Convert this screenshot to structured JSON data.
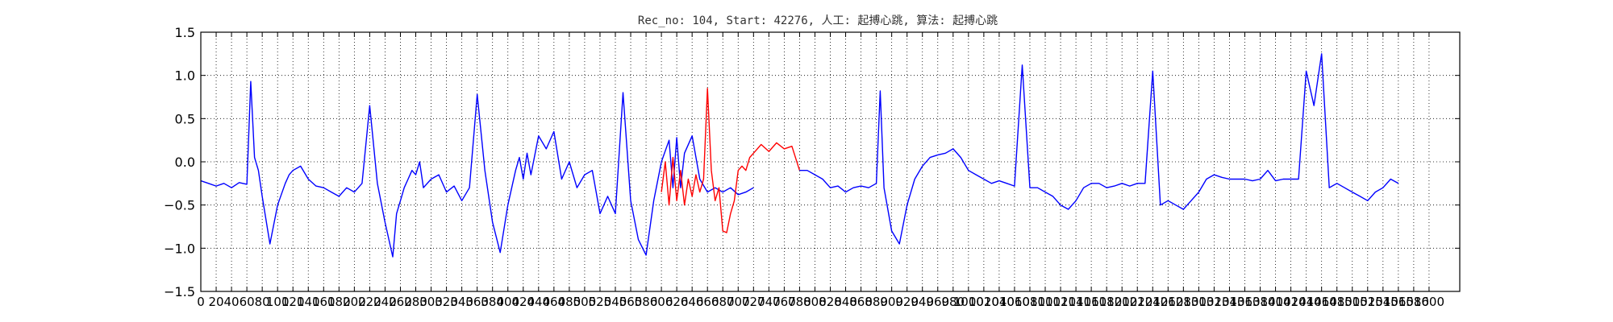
{
  "chart_data": {
    "type": "line",
    "title": "Rec_no: 104, Start: 42276, 人工: 起搏心跳, 算法: 起搏心跳",
    "xlabel": "",
    "ylabel": "",
    "xlim": [
      0,
      1640
    ],
    "ylim": [
      -1.5,
      1.5
    ],
    "grid": true,
    "yticks": [
      1.5,
      1.0,
      0.5,
      0.0,
      -0.5,
      -1.0,
      -1.5
    ],
    "ytick_labels": [
      "1.5",
      "1.0",
      "0.5",
      "0.0",
      "−0.5",
      "−1.0",
      "−1.5"
    ],
    "xticks": [
      0,
      20,
      40,
      60,
      80,
      100,
      120,
      140,
      160,
      180,
      200,
      220,
      240,
      260,
      280,
      300,
      320,
      340,
      360,
      380,
      400,
      420,
      440,
      460,
      480,
      500,
      520,
      540,
      560,
      580,
      600,
      620,
      640,
      660,
      680,
      700,
      720,
      740,
      760,
      780,
      800,
      820,
      840,
      860,
      880,
      900,
      920,
      940,
      960,
      980,
      1000,
      1020,
      1040,
      1060,
      1080,
      1100,
      1120,
      1140,
      1160,
      1180,
      1200,
      1220,
      1240,
      1260,
      1280,
      1300,
      1320,
      1340,
      1360,
      1380,
      1400,
      1420,
      1440,
      1460,
      1480,
      1500,
      1520,
      1540,
      1560,
      1580,
      1600
    ],
    "series": [
      {
        "color": "#0000ff",
        "x": [
          0,
          10,
          20,
          30,
          40,
          50,
          60,
          65,
          70,
          75,
          80,
          90,
          100,
          110,
          115,
          120,
          130,
          140,
          150,
          160,
          170,
          180,
          190,
          200,
          210,
          220,
          230,
          240,
          250,
          255,
          260,
          265,
          270,
          275,
          280,
          285,
          290,
          300,
          310,
          320,
          330,
          340,
          350,
          360,
          370,
          380,
          390,
          400,
          410,
          415,
          420,
          425,
          430,
          440,
          450,
          460,
          470,
          480,
          490,
          500,
          510,
          520,
          530,
          540,
          550,
          560,
          570,
          580,
          590,
          600,
          610,
          615,
          620,
          625,
          630,
          640,
          650,
          660,
          670,
          680,
          690,
          700,
          710,
          720
        ],
        "y": [
          -0.22,
          -0.25,
          -0.28,
          -0.25,
          -0.3,
          -0.24,
          -0.26,
          0.93,
          0.05,
          -0.1,
          -0.4,
          -0.95,
          -0.5,
          -0.25,
          -0.15,
          -0.1,
          -0.05,
          -0.2,
          -0.28,
          -0.3,
          -0.35,
          -0.4,
          -0.3,
          -0.35,
          -0.25,
          0.65,
          -0.25,
          -0.7,
          -1.1,
          -0.6,
          -0.45,
          -0.3,
          -0.2,
          -0.1,
          -0.15,
          0.0,
          -0.3,
          -0.2,
          -0.15,
          -0.35,
          -0.28,
          -0.45,
          -0.3,
          0.78,
          -0.1,
          -0.7,
          -1.05,
          -0.5,
          -0.1,
          0.05,
          -0.2,
          0.1,
          -0.15,
          0.3,
          0.15,
          0.35,
          -0.2,
          0.0,
          -0.3,
          -0.15,
          -0.1,
          -0.6,
          -0.4,
          -0.6,
          0.8,
          -0.45,
          -0.9,
          -1.08,
          -0.45,
          0.0,
          0.25,
          -0.3,
          0.28,
          -0.3,
          0.1,
          0.3,
          -0.2,
          -0.35,
          -0.3,
          -0.35,
          -0.3,
          -0.38,
          -0.35,
          -0.3
        ]
      },
      {
        "color": "#ff0000",
        "x": [
          600,
          605,
          610,
          615,
          620,
          625,
          630,
          635,
          640,
          645,
          650,
          655,
          660,
          665,
          670,
          675,
          680,
          685,
          690,
          695,
          700,
          705,
          710,
          715,
          720,
          730,
          740,
          750,
          760,
          770,
          780
        ],
        "y": [
          -0.35,
          0.0,
          -0.5,
          0.05,
          -0.45,
          -0.1,
          -0.5,
          -0.2,
          -0.4,
          -0.15,
          -0.35,
          -0.2,
          0.85,
          -0.1,
          -0.45,
          -0.3,
          -0.8,
          -0.82,
          -0.6,
          -0.45,
          -0.1,
          -0.05,
          -0.1,
          0.05,
          0.1,
          0.2,
          0.12,
          0.22,
          0.15,
          0.18,
          -0.1
        ]
      },
      {
        "color": "#0000ff",
        "x": [
          780,
          790,
          800,
          810,
          820,
          830,
          840,
          850,
          860,
          870,
          880,
          885,
          890,
          900,
          910,
          920,
          930,
          940,
          950,
          960,
          970,
          980,
          990,
          1000,
          1010,
          1020,
          1030,
          1040,
          1050,
          1060,
          1070,
          1080,
          1090,
          1100,
          1110,
          1120,
          1130,
          1140,
          1150,
          1160,
          1170,
          1180,
          1190,
          1200,
          1210,
          1220,
          1230,
          1240,
          1250,
          1260,
          1270,
          1280,
          1290,
          1300,
          1310,
          1320,
          1330,
          1340,
          1350,
          1360,
          1370,
          1380,
          1390,
          1400,
          1410,
          1420,
          1430,
          1440,
          1450,
          1460,
          1470,
          1480,
          1490,
          1500,
          1510,
          1520,
          1530,
          1540,
          1550,
          1560
        ],
        "y": [
          -0.1,
          -0.1,
          -0.15,
          -0.2,
          -0.3,
          -0.28,
          -0.35,
          -0.3,
          -0.28,
          -0.3,
          -0.25,
          0.82,
          -0.3,
          -0.8,
          -0.95,
          -0.5,
          -0.2,
          -0.05,
          0.05,
          0.08,
          0.1,
          0.15,
          0.05,
          -0.1,
          -0.15,
          -0.2,
          -0.25,
          -0.22,
          -0.25,
          -0.28,
          1.12,
          -0.3,
          -0.3,
          -0.35,
          -0.4,
          -0.5,
          -0.55,
          -0.45,
          -0.3,
          -0.25,
          -0.25,
          -0.3,
          -0.28,
          -0.25,
          -0.28,
          -0.25,
          -0.25,
          1.05,
          -0.5,
          -0.45,
          -0.5,
          -0.55,
          -0.45,
          -0.35,
          -0.2,
          -0.15,
          -0.18,
          -0.2,
          -0.2,
          -0.2,
          -0.22,
          -0.2,
          -0.1,
          -0.22,
          -0.2,
          -0.2,
          -0.2,
          1.05,
          0.65,
          1.25,
          -0.3,
          -0.25,
          -0.3,
          -0.35,
          -0.4,
          -0.45,
          -0.35,
          -0.3,
          -0.2,
          -0.25
        ]
      }
    ]
  }
}
